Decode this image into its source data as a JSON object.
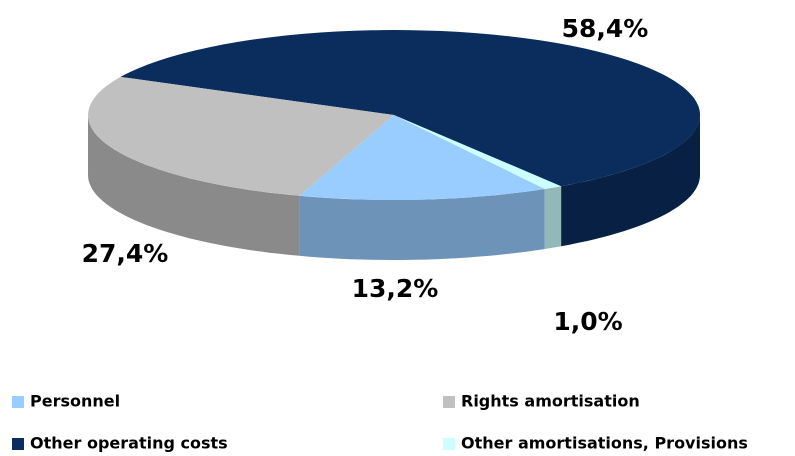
{
  "chart_data": {
    "type": "pie",
    "categories": [
      "Personnel",
      "Rights amortisation",
      "Other operating costs",
      "Other amortisations, Provisions"
    ],
    "values": [
      13.2,
      27.4,
      58.4,
      1.0
    ],
    "value_labels": [
      "13,2%",
      "27,4%",
      "58,4%",
      "1,0%"
    ],
    "colors": [
      "#99ccff",
      "#c0c0c0",
      "#0a2d5e",
      "#ccffff"
    ],
    "legend": "bottom"
  }
}
